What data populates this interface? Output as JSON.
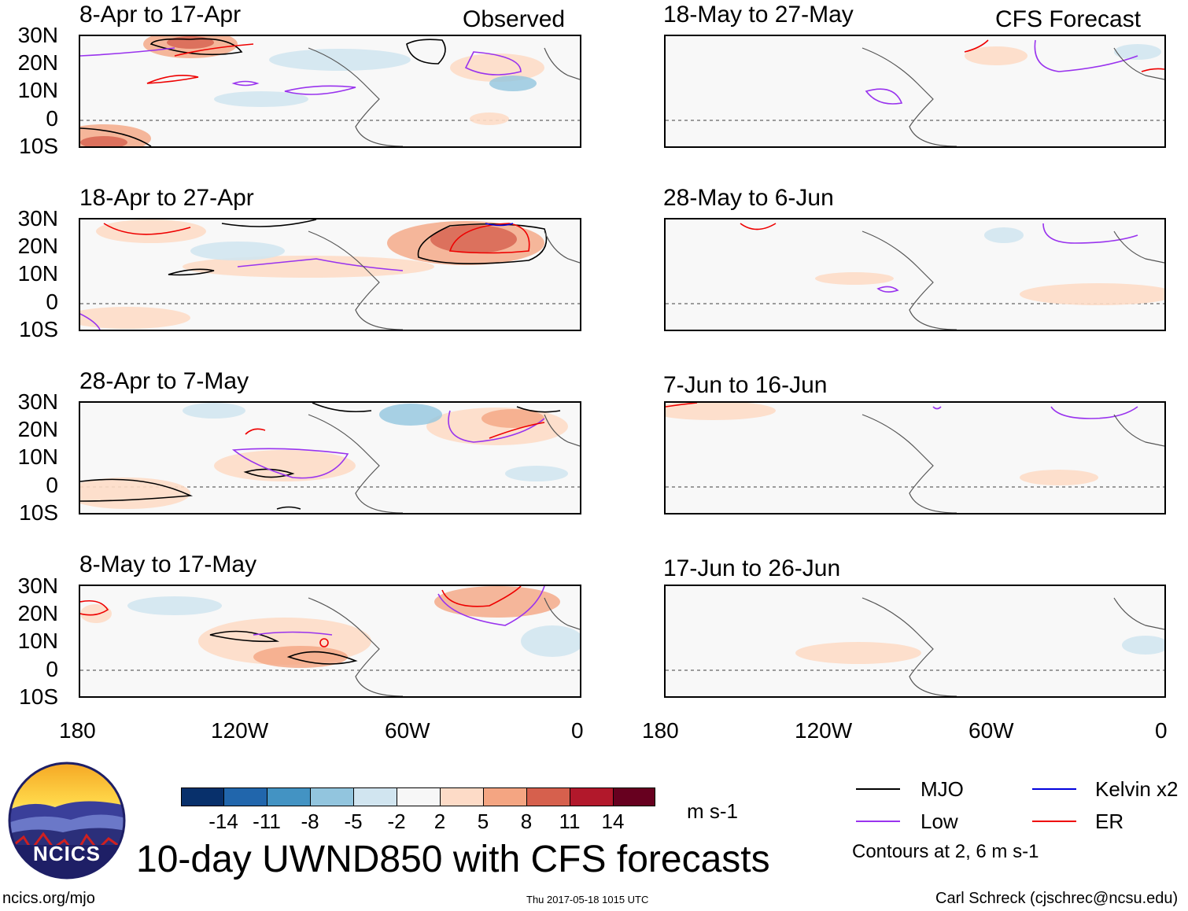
{
  "observed_label": "Observed",
  "forecast_label": "CFS Forecast",
  "panels_left": [
    {
      "title": "8-Apr to 17-Apr"
    },
    {
      "title": "18-Apr to 27-Apr"
    },
    {
      "title": "28-Apr to 7-May"
    },
    {
      "title": "8-May to 17-May"
    }
  ],
  "panels_right": [
    {
      "title": "18-May to 27-May"
    },
    {
      "title": "28-May to 6-Jun"
    },
    {
      "title": "7-Jun to 16-Jun"
    },
    {
      "title": "17-Jun to 26-Jun"
    }
  ],
  "lat_labels": [
    "30N",
    "20N",
    "10N",
    "0",
    "10S"
  ],
  "lon_labels": [
    "180",
    "120W",
    "60W",
    "0"
  ],
  "colorbar": {
    "colors": [
      "#08306b",
      "#2166ac",
      "#4393c3",
      "#92c5de",
      "#d1e5f0",
      "#f7f7f7",
      "#fddbc7",
      "#f4a582",
      "#d6604d",
      "#b2182b",
      "#67001f"
    ],
    "ticks": [
      "-14",
      "-11",
      "-8",
      "-5",
      "-2",
      "2",
      "5",
      "8",
      "11",
      "14"
    ],
    "units": "m s-1"
  },
  "legend": {
    "mjo": {
      "label": "MJO",
      "color": "#000000"
    },
    "low": {
      "label": "Low",
      "color": "#9933ee"
    },
    "kelvin": {
      "label": "Kelvin x2",
      "color": "#0000dd"
    },
    "er": {
      "label": "ER",
      "color": "#ee0000"
    },
    "contours_note": "Contours at 2, 6 m s-1"
  },
  "main_title": "10-day UWND850 with CFS forecasts",
  "logo_text": "NCICS",
  "footer": {
    "url": "ncics.org/mjo",
    "timestamp": "Thu 2017-05-18 1015 UTC",
    "author": "Carl Schreck (cjschrec@ncsu.edu)"
  }
}
